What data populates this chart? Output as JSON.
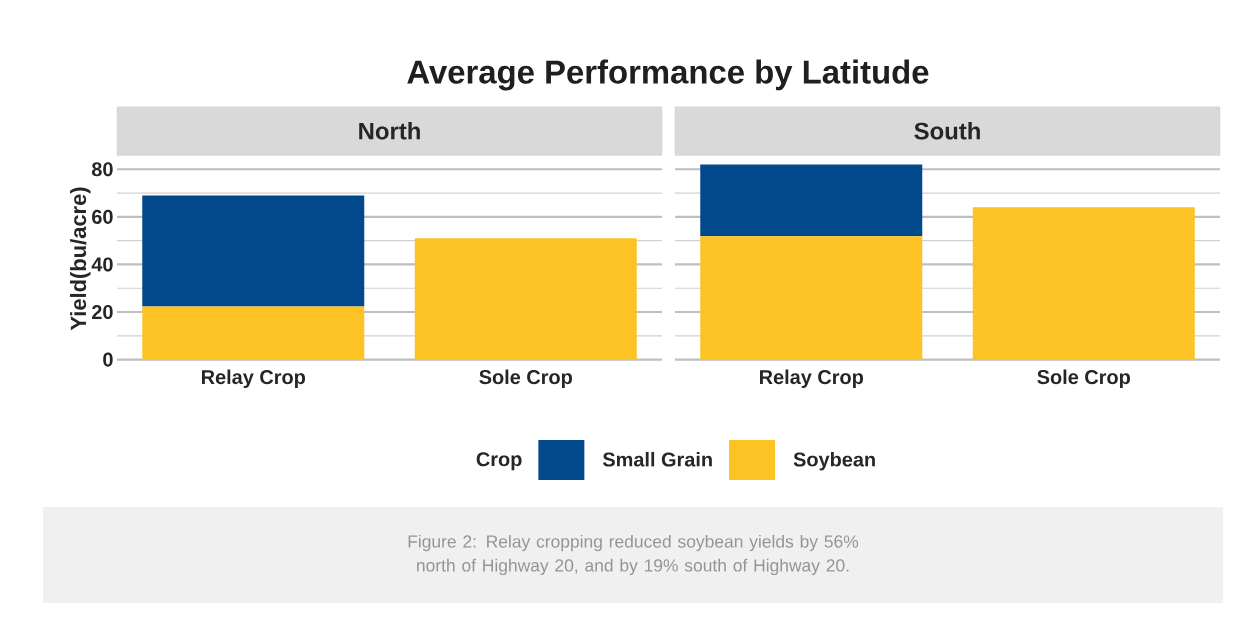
{
  "chart_data": [
    {
      "type": "bar",
      "stacked": true,
      "title": "North",
      "ylabel": "Yield(bu/acre)",
      "categories": [
        "Relay Crop",
        "Sole Crop"
      ],
      "ylim": [
        -1,
        86
      ],
      "yticks": [
        0,
        20,
        40,
        60,
        80
      ],
      "grid": "y",
      "legend": "bottom",
      "legend_title": "Crop",
      "annotations": [
        "Average Performance by Latitude",
        "Figure 2: Relay cropping reduced soybean yields by 56% north of Highway 20, and by 19% south of Highway 20."
      ],
      "series": [
        {
          "name": "Soybean",
          "color": "#fdc325",
          "values": [
            22.3,
            51
          ]
        },
        {
          "name": "Small Grain",
          "color": "#02498b",
          "values": [
            46.7,
            null
          ]
        }
      ]
    },
    {
      "type": "bar",
      "stacked": true,
      "title": "South",
      "categories": [
        "Relay Crop",
        "Sole Crop"
      ],
      "ylim": [
        -1,
        86
      ],
      "yticks": [
        0,
        20,
        40,
        60,
        80
      ],
      "grid": "y",
      "tick_labels": "x",
      "series": [
        {
          "color": "#fdc325",
          "values": [
            51.8,
            64
          ]
        },
        {
          "color": "#02498b",
          "values": [
            30.2,
            null
          ]
        }
      ]
    }
  ]
}
